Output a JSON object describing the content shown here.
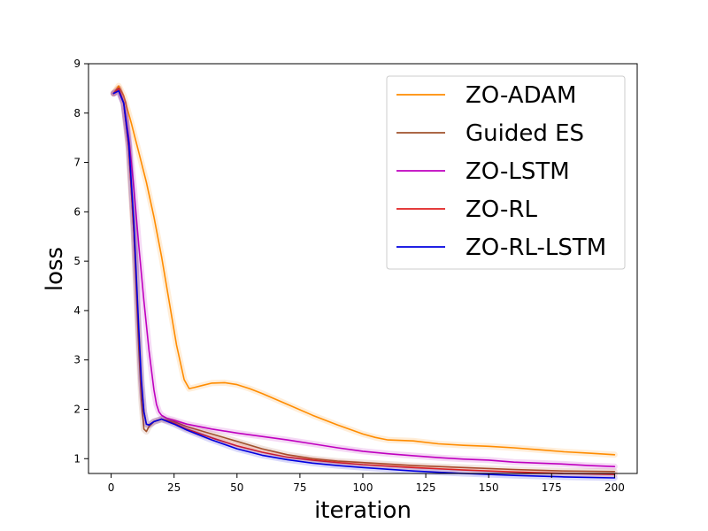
{
  "chart_data": {
    "type": "line",
    "title": "",
    "xlabel": "iteration",
    "ylabel": "loss",
    "xlim": [
      -9,
      209
    ],
    "ylim": [
      0.7,
      9
    ],
    "xticks": [
      0,
      25,
      50,
      75,
      100,
      125,
      150,
      175,
      200
    ],
    "yticks": [
      1,
      2,
      3,
      4,
      5,
      6,
      7,
      8,
      9
    ],
    "grid": false,
    "legend_position": "top-right",
    "series": [
      {
        "name": "ZO-ADAM",
        "color": "#ff8c00",
        "x": [
          1,
          3,
          5,
          8,
          11,
          14,
          17,
          20,
          23,
          26,
          29,
          31,
          33,
          36,
          40,
          45,
          50,
          55,
          60,
          70,
          80,
          90,
          100,
          105,
          110,
          120,
          130,
          140,
          150,
          160,
          170,
          180,
          190,
          200
        ],
        "y": [
          8.4,
          8.55,
          8.35,
          7.8,
          7.2,
          6.6,
          5.9,
          5.1,
          4.2,
          3.3,
          2.6,
          2.42,
          2.44,
          2.48,
          2.53,
          2.54,
          2.5,
          2.42,
          2.32,
          2.1,
          1.88,
          1.68,
          1.5,
          1.43,
          1.38,
          1.36,
          1.3,
          1.27,
          1.25,
          1.22,
          1.18,
          1.14,
          1.11,
          1.08
        ]
      },
      {
        "name": "Guided ES",
        "color": "#a0522d",
        "x": [
          1,
          3,
          5,
          7,
          9,
          11,
          12,
          13,
          14,
          15,
          17,
          20,
          25,
          30,
          40,
          50,
          60,
          70,
          80,
          90,
          100,
          120,
          140,
          160,
          180,
          200
        ],
        "y": [
          8.4,
          8.5,
          8.2,
          7.3,
          5.6,
          3.2,
          2.2,
          1.6,
          1.55,
          1.65,
          1.75,
          1.8,
          1.75,
          1.65,
          1.5,
          1.35,
          1.2,
          1.08,
          1.0,
          0.95,
          0.92,
          0.86,
          0.82,
          0.78,
          0.75,
          0.74
        ]
      },
      {
        "name": "ZO-LSTM",
        "color": "#bf00bf",
        "x": [
          1,
          3,
          5,
          7,
          9,
          11,
          13,
          15,
          17,
          18,
          19,
          20,
          22,
          25,
          30,
          40,
          50,
          60,
          70,
          80,
          90,
          100,
          110,
          120,
          130,
          140,
          150,
          160,
          170,
          180,
          190,
          200
        ],
        "y": [
          8.4,
          8.45,
          8.2,
          7.5,
          6.5,
          5.3,
          4.2,
          3.2,
          2.4,
          2.1,
          1.95,
          1.88,
          1.82,
          1.78,
          1.7,
          1.6,
          1.52,
          1.45,
          1.38,
          1.3,
          1.22,
          1.15,
          1.1,
          1.06,
          1.02,
          0.99,
          0.97,
          0.93,
          0.91,
          0.89,
          0.86,
          0.84
        ]
      },
      {
        "name": "ZO-RL",
        "color": "#e02020",
        "x": [
          1,
          3,
          5,
          7,
          9,
          11,
          12,
          13,
          14,
          15,
          17,
          20,
          25,
          30,
          40,
          50,
          60,
          70,
          80,
          90,
          100,
          120,
          140,
          160,
          180,
          200
        ],
        "y": [
          8.4,
          8.5,
          8.2,
          7.3,
          5.6,
          3.5,
          2.5,
          1.95,
          1.7,
          1.68,
          1.75,
          1.8,
          1.72,
          1.6,
          1.42,
          1.26,
          1.13,
          1.03,
          0.97,
          0.92,
          0.88,
          0.82,
          0.77,
          0.73,
          0.7,
          0.68
        ]
      },
      {
        "name": "ZO-RL-LSTM",
        "color": "#0000e0",
        "x": [
          1,
          3,
          5,
          7,
          9,
          11,
          12,
          13,
          14,
          15,
          17,
          20,
          25,
          30,
          40,
          50,
          60,
          70,
          80,
          90,
          100,
          120,
          140,
          160,
          180,
          200
        ],
        "y": [
          8.4,
          8.45,
          8.2,
          7.4,
          5.8,
          3.6,
          2.6,
          1.95,
          1.7,
          1.68,
          1.75,
          1.8,
          1.7,
          1.58,
          1.38,
          1.2,
          1.07,
          0.98,
          0.91,
          0.86,
          0.82,
          0.75,
          0.7,
          0.66,
          0.63,
          0.61
        ]
      }
    ]
  }
}
